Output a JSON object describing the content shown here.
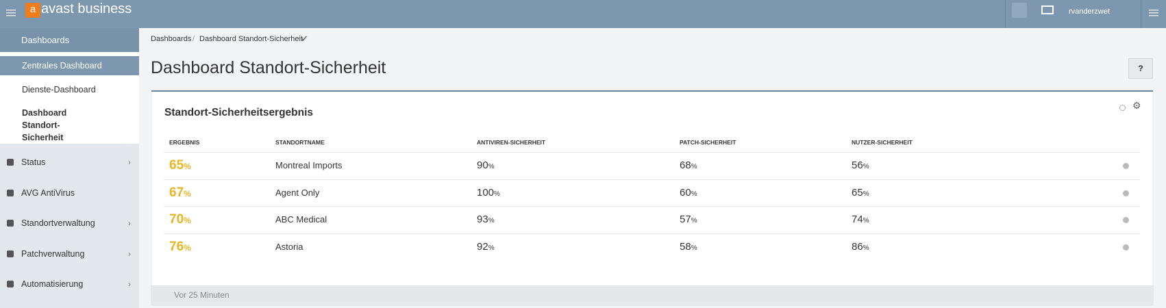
{
  "header": {
    "brand_mark": "a",
    "brand": "avast business",
    "user": "rvanderzwet"
  },
  "sidebar": {
    "section": "Dashboards",
    "subitems": [
      "Zentrales Dashboard",
      "Dienste-Dashboard",
      "Dashboard Standort-Sicherheit"
    ],
    "items": [
      "Status",
      "AVG AntiVirus",
      "Standortverwaltung",
      "Patchverwaltung",
      "Automatisierung"
    ]
  },
  "breadcrumb": [
    "Dashboards",
    "Dashboard Standort-Sicherheit"
  ],
  "page_title": "Dashboard Standort-Sicherheit",
  "panel": {
    "title": "Standort-Sicherheitsergebnis",
    "footer": "Vor 25 Minuten"
  },
  "table": {
    "columns": [
      "ERGEBNIS",
      "STANDORTNAME",
      "ANTIVIREN-SICHERHEIT",
      "PATCH-SICHERHEIT",
      "NUTZER-SICHERHEIT"
    ],
    "unit": "%",
    "rows": [
      [
        65,
        "Montreal Imports",
        90,
        68,
        56
      ],
      [
        67,
        "Agent Only",
        100,
        60,
        65
      ],
      [
        70,
        "ABC Medical",
        93,
        57,
        74
      ],
      [
        76,
        "Astoria",
        92,
        58,
        86
      ]
    ]
  }
}
